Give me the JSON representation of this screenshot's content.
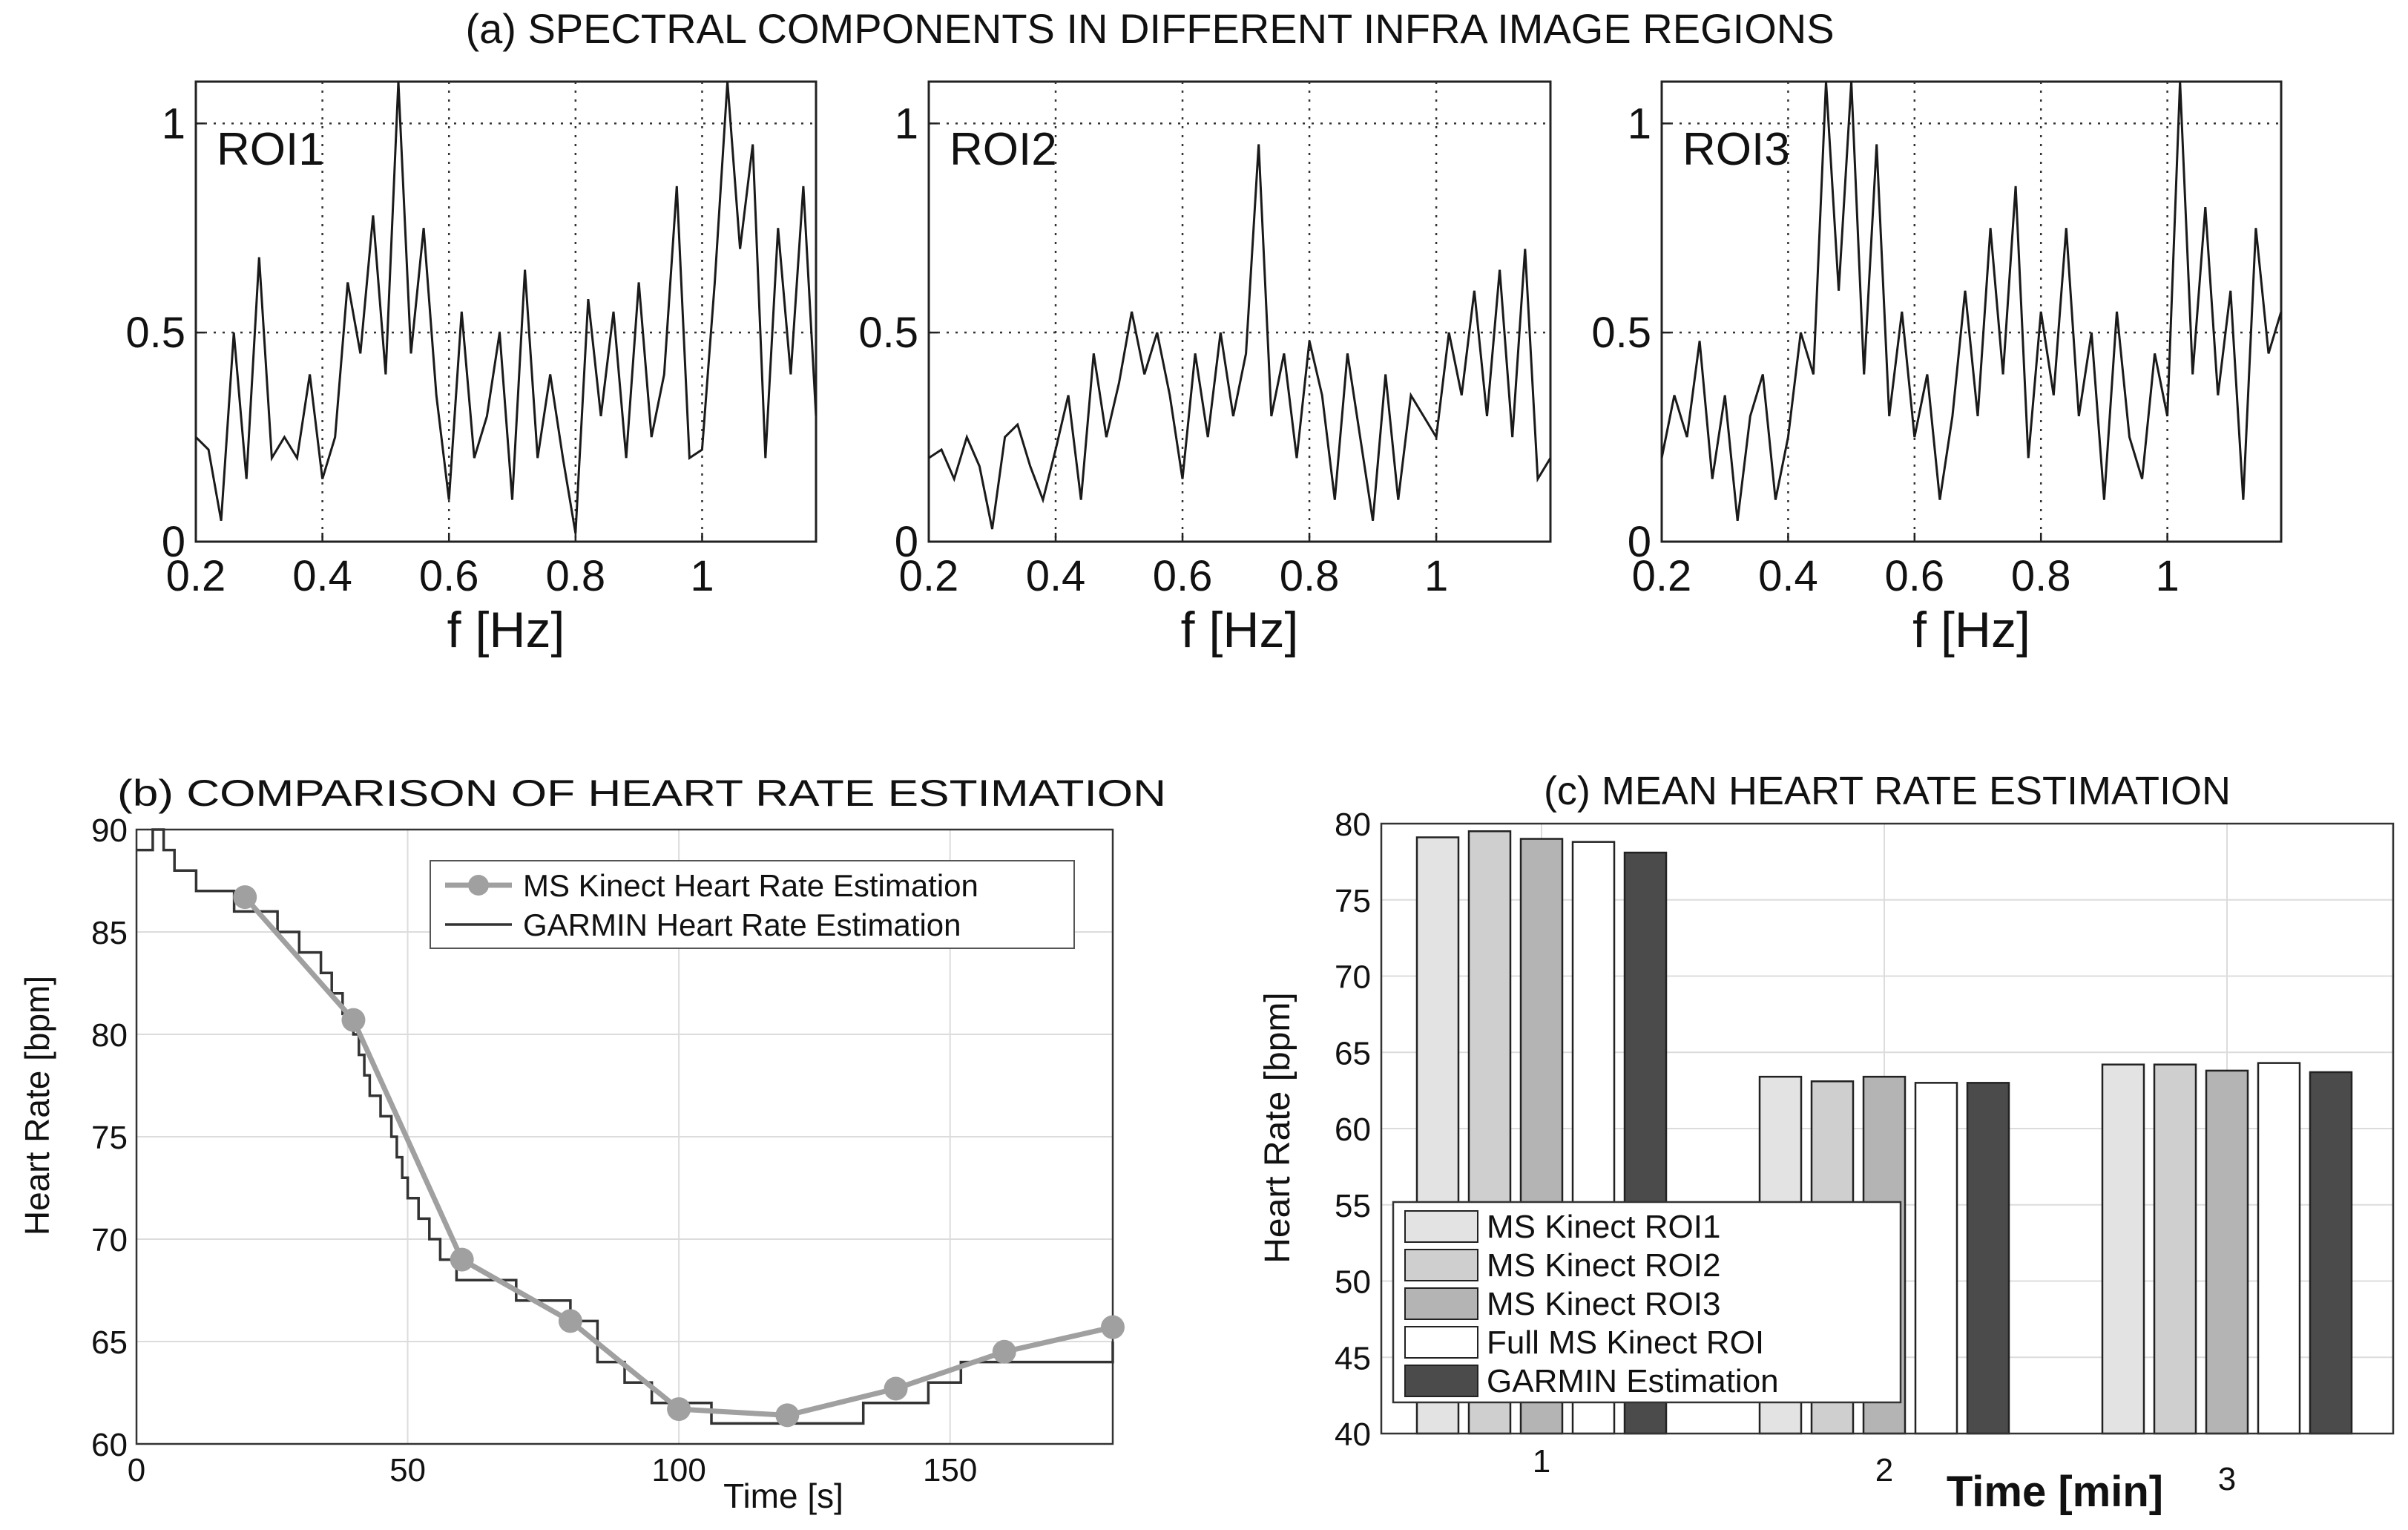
{
  "figure_title": "(a) SPECTRAL COMPONENTS  IN DIFFERENT INFRA IMAGE REGIONS",
  "colors": {
    "spectrum_line": "#1a1a1a",
    "kinect_line": "#a0a0a0",
    "garmin_line": "#333333",
    "roi1": "#e3e3e3",
    "roi2": "#cfcfcf",
    "roi3": "#b4b4b4",
    "full_roi": "#ffffff",
    "garmin_bar": "#4b4b4b"
  },
  "chart_data": [
    {
      "type": "line",
      "panel": "spectrum-roi1",
      "label": "ROI1",
      "xlabel": "f [Hz]",
      "xlim": [
        0.2,
        1.18
      ],
      "ylim": [
        0,
        1.1
      ],
      "xticks": [
        0.2,
        0.4,
        0.6,
        0.8,
        1.0
      ],
      "xtick_labels": [
        "0.2",
        "0.4",
        "0.6",
        "0.8",
        "1"
      ],
      "yticks": [
        0,
        0.5,
        1
      ],
      "ytick_labels": [
        "0",
        "0.5",
        "1"
      ],
      "grid": "dotted",
      "x": [
        0.2,
        0.22,
        0.24,
        0.26,
        0.28,
        0.3,
        0.32,
        0.34,
        0.36,
        0.38,
        0.4,
        0.42,
        0.44,
        0.46,
        0.48,
        0.5,
        0.52,
        0.54,
        0.56,
        0.58,
        0.6,
        0.62,
        0.64,
        0.66,
        0.68,
        0.7,
        0.72,
        0.74,
        0.76,
        0.78,
        0.8,
        0.82,
        0.84,
        0.86,
        0.88,
        0.9,
        0.92,
        0.94,
        0.96,
        0.98,
        1.0,
        1.02,
        1.04,
        1.06,
        1.08,
        1.1,
        1.12,
        1.14,
        1.16,
        1.18
      ],
      "y": [
        0.25,
        0.22,
        0.05,
        0.5,
        0.15,
        0.68,
        0.2,
        0.25,
        0.2,
        0.4,
        0.15,
        0.25,
        0.62,
        0.45,
        0.78,
        0.4,
        1.1,
        0.45,
        0.75,
        0.35,
        0.1,
        0.55,
        0.2,
        0.3,
        0.5,
        0.1,
        0.65,
        0.2,
        0.4,
        0.2,
        0.02,
        0.58,
        0.3,
        0.55,
        0.2,
        0.62,
        0.25,
        0.4,
        0.85,
        0.2,
        0.22,
        0.62,
        1.1,
        0.7,
        0.95,
        0.2,
        0.75,
        0.4,
        0.85,
        0.3
      ]
    },
    {
      "type": "line",
      "panel": "spectrum-roi2",
      "label": "ROI2",
      "xlabel": "f [Hz]",
      "xlim": [
        0.2,
        1.18
      ],
      "ylim": [
        0,
        1.1
      ],
      "xticks": [
        0.2,
        0.4,
        0.6,
        0.8,
        1.0
      ],
      "xtick_labels": [
        "0.2",
        "0.4",
        "0.6",
        "0.8",
        "1"
      ],
      "yticks": [
        0,
        0.5,
        1
      ],
      "ytick_labels": [
        "0",
        "0.5",
        "1"
      ],
      "grid": "dotted",
      "x": [
        0.2,
        0.22,
        0.24,
        0.26,
        0.28,
        0.3,
        0.32,
        0.34,
        0.36,
        0.38,
        0.4,
        0.42,
        0.44,
        0.46,
        0.48,
        0.5,
        0.52,
        0.54,
        0.56,
        0.58,
        0.6,
        0.62,
        0.64,
        0.66,
        0.68,
        0.7,
        0.72,
        0.74,
        0.76,
        0.78,
        0.8,
        0.82,
        0.84,
        0.86,
        0.88,
        0.9,
        0.92,
        0.94,
        0.96,
        0.98,
        1.0,
        1.02,
        1.04,
        1.06,
        1.08,
        1.1,
        1.12,
        1.14,
        1.16,
        1.18
      ],
      "y": [
        0.2,
        0.22,
        0.15,
        0.25,
        0.18,
        0.03,
        0.25,
        0.28,
        0.18,
        0.1,
        0.22,
        0.35,
        0.1,
        0.45,
        0.25,
        0.38,
        0.55,
        0.4,
        0.5,
        0.35,
        0.15,
        0.45,
        0.25,
        0.5,
        0.3,
        0.45,
        0.95,
        0.3,
        0.45,
        0.2,
        0.48,
        0.35,
        0.1,
        0.45,
        0.25,
        0.05,
        0.4,
        0.1,
        0.35,
        0.3,
        0.25,
        0.5,
        0.35,
        0.6,
        0.3,
        0.65,
        0.25,
        0.7,
        0.15,
        0.2
      ]
    },
    {
      "type": "line",
      "panel": "spectrum-roi3",
      "label": "ROI3",
      "xlabel": "f [Hz]",
      "xlim": [
        0.2,
        1.18
      ],
      "ylim": [
        0,
        1.1
      ],
      "xticks": [
        0.2,
        0.4,
        0.6,
        0.8,
        1.0
      ],
      "xtick_labels": [
        "0.2",
        "0.4",
        "0.6",
        "0.8",
        "1"
      ],
      "yticks": [
        0,
        0.5,
        1
      ],
      "ytick_labels": [
        "0",
        "0.5",
        "1"
      ],
      "grid": "dotted",
      "x": [
        0.2,
        0.22,
        0.24,
        0.26,
        0.28,
        0.3,
        0.32,
        0.34,
        0.36,
        0.38,
        0.4,
        0.42,
        0.44,
        0.46,
        0.48,
        0.5,
        0.52,
        0.54,
        0.56,
        0.58,
        0.6,
        0.62,
        0.64,
        0.66,
        0.68,
        0.7,
        0.72,
        0.74,
        0.76,
        0.78,
        0.8,
        0.82,
        0.84,
        0.86,
        0.88,
        0.9,
        0.92,
        0.94,
        0.96,
        0.98,
        1.0,
        1.02,
        1.04,
        1.06,
        1.08,
        1.1,
        1.12,
        1.14,
        1.16,
        1.18
      ],
      "y": [
        0.2,
        0.35,
        0.25,
        0.48,
        0.15,
        0.35,
        0.05,
        0.3,
        0.4,
        0.1,
        0.25,
        0.5,
        0.4,
        1.1,
        0.6,
        1.1,
        0.4,
        0.95,
        0.3,
        0.55,
        0.25,
        0.4,
        0.1,
        0.3,
        0.6,
        0.3,
        0.75,
        0.4,
        0.85,
        0.2,
        0.55,
        0.35,
        0.75,
        0.3,
        0.5,
        0.1,
        0.55,
        0.25,
        0.15,
        0.45,
        0.3,
        1.1,
        0.4,
        0.8,
        0.35,
        0.6,
        0.1,
        0.75,
        0.45,
        0.55
      ]
    },
    {
      "type": "line",
      "panel": "hr-comparison",
      "title": "(b) COMPARISON OF HEART RATE ESTIMATION",
      "xlabel": "Time [s]",
      "ylabel": "Heart Rate [bpm]",
      "xlim": [
        0,
        180
      ],
      "ylim": [
        60,
        90
      ],
      "xticks": [
        0,
        50,
        100,
        150
      ],
      "xtick_labels": [
        "0",
        "50",
        "100",
        "150"
      ],
      "yticks": [
        60,
        65,
        70,
        75,
        80,
        85,
        90
      ],
      "ytick_labels": [
        "60",
        "65",
        "70",
        "75",
        "80",
        "85",
        "90"
      ],
      "grid": "solid",
      "legend_position": "top-right",
      "series": [
        {
          "name": "MS Kinect Heart Rate Estimation",
          "x": [
            20,
            40,
            60,
            80,
            100,
            120,
            140,
            160,
            180
          ],
          "y": [
            86.7,
            80.7,
            69.0,
            66.0,
            61.7,
            61.4,
            62.7,
            64.5,
            65.7
          ]
        },
        {
          "name": "GARMIN Heart Rate Estimation",
          "x": [
            0,
            2,
            3,
            5,
            7,
            9,
            11,
            13,
            15,
            18,
            20,
            22,
            24,
            26,
            28,
            30,
            32,
            34,
            36,
            38,
            40,
            41,
            42,
            43,
            44,
            45,
            46,
            47,
            48,
            49,
            50,
            51,
            52,
            53,
            54,
            55,
            56,
            57,
            58,
            59,
            60,
            65,
            70,
            75,
            80,
            85,
            90,
            95,
            100,
            103,
            106,
            110,
            120,
            130,
            132,
            134,
            136,
            138,
            140,
            143,
            146,
            150,
            152,
            155,
            160,
            165,
            170,
            175,
            178,
            180
          ],
          "y": [
            89,
            89,
            90,
            89,
            88,
            88,
            87,
            87,
            87,
            86,
            86,
            86,
            86,
            85,
            85,
            84,
            84,
            83,
            82,
            81,
            80,
            79,
            78,
            77,
            77,
            76,
            76,
            75,
            74,
            73,
            72,
            72,
            71,
            71,
            70,
            70,
            69,
            69,
            69,
            68,
            68,
            68,
            67,
            67,
            66,
            64,
            63,
            62,
            62,
            62,
            61,
            61,
            61,
            61,
            61,
            62,
            62,
            62,
            62,
            62,
            63,
            63,
            64,
            64,
            64,
            64,
            64,
            64,
            64,
            65
          ]
        }
      ]
    },
    {
      "type": "bar",
      "panel": "mean-hr",
      "title": "(c) MEAN HEART RATE ESTIMATION",
      "xlabel": "Time [min]",
      "ylabel": "Heart Rate [bpm]",
      "categories": [
        "1",
        "2",
        "3"
      ],
      "ylim": [
        40,
        80
      ],
      "yticks": [
        40,
        45,
        50,
        55,
        60,
        65,
        70,
        75,
        80
      ],
      "ytick_labels": [
        "40",
        "45",
        "50",
        "55",
        "60",
        "65",
        "70",
        "75",
        "80"
      ],
      "grid": "solid",
      "legend_position": "bottom-left",
      "series": [
        {
          "name": "MS Kinect ROI1",
          "values": [
            79.1,
            63.4,
            64.2
          ]
        },
        {
          "name": "MS Kinect ROI2",
          "values": [
            79.5,
            63.1,
            64.2
          ]
        },
        {
          "name": "MS Kinect ROI3",
          "values": [
            79.0,
            63.4,
            63.8
          ]
        },
        {
          "name": "Full MS Kinect ROI",
          "values": [
            78.8,
            63.0,
            64.3
          ]
        },
        {
          "name": "GARMIN Estimation",
          "values": [
            78.1,
            63.0,
            63.7
          ]
        }
      ]
    }
  ]
}
